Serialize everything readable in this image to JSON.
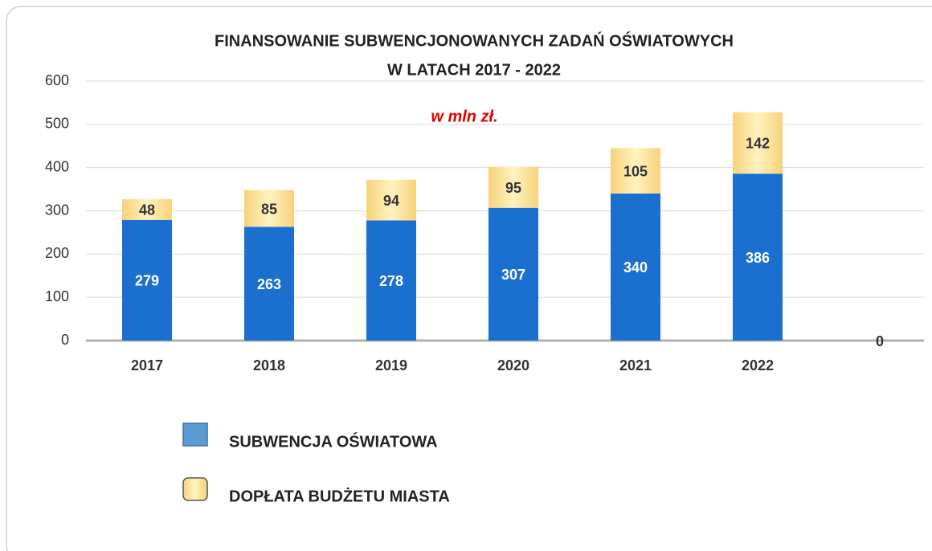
{
  "chart_data": {
    "type": "stacked_bar",
    "title": [
      "FINANSOWANIE SUBWENCJONOWANYCH ZADAŃ OŚWIATOWYCH",
      "W   LATACH 2017 - 2022"
    ],
    "annotation": "w  mln zł.",
    "categories": [
      "2017",
      "2018",
      "2019",
      "2020",
      "2021",
      "2022",
      null
    ],
    "series": [
      {
        "name": "SUBWENCJA OŚWIATOWA",
        "color": "#1b6fcf",
        "label_color": "#ffffff",
        "values": [
          279,
          263,
          278,
          307,
          340,
          386,
          0
        ]
      },
      {
        "name": "DOPŁATA  BUDŻETU MIASTA",
        "color": "#fde9a0",
        "label_color": "#333333",
        "values": [
          48,
          85,
          94,
          95,
          105,
          142,
          null
        ]
      }
    ],
    "ylim": [
      0,
      600
    ],
    "yticks": [
      0,
      100,
      200,
      300,
      400,
      500,
      600
    ],
    "grid": true
  }
}
